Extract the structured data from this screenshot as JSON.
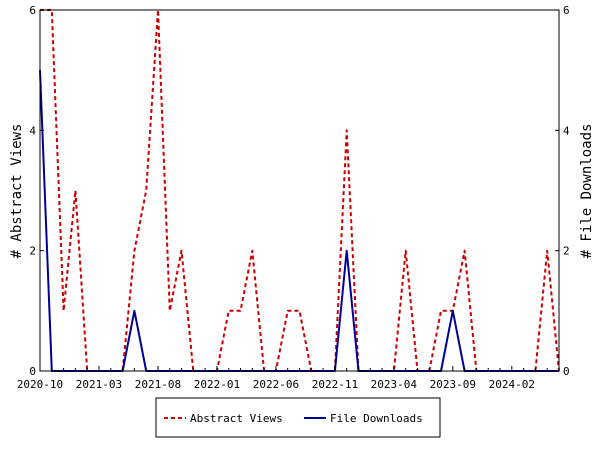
{
  "chart_data": {
    "type": "line",
    "title": "",
    "xlabel": "",
    "ylabel_left": "# Abstract Views",
    "ylabel_right": "# File Downloads",
    "x_ticks": [
      "2020-10",
      "2021-03",
      "2021-08",
      "2022-01",
      "2022-06",
      "2022-11",
      "2023-04",
      "2023-09",
      "2024-02"
    ],
    "ylim": [
      0,
      6
    ],
    "y_ticks_left": [
      "0",
      "2",
      "4",
      "6"
    ],
    "y_ticks_right": [
      "0",
      "2",
      "4",
      "6"
    ],
    "grid": false,
    "legend_position": "bottom-center",
    "x": [
      "2020-10",
      "2020-11",
      "2020-12",
      "2021-01",
      "2021-02",
      "2021-03",
      "2021-04",
      "2021-05",
      "2021-06",
      "2021-07",
      "2021-08",
      "2021-09",
      "2021-10",
      "2021-11",
      "2021-12",
      "2022-01",
      "2022-02",
      "2022-03",
      "2022-04",
      "2022-05",
      "2022-06",
      "2022-07",
      "2022-08",
      "2022-09",
      "2022-10",
      "2022-11",
      "2022-12",
      "2023-01",
      "2023-02",
      "2023-03",
      "2023-04",
      "2023-05",
      "2023-06",
      "2023-07",
      "2023-08",
      "2023-09",
      "2023-10",
      "2023-11",
      "2023-12",
      "2024-01",
      "2024-02",
      "2024-03",
      "2024-04",
      "2024-05",
      "2024-06"
    ],
    "series": [
      {
        "name": "Abstract Views",
        "color": "#cc0000",
        "style": "dashed",
        "values": [
          6,
          6,
          1,
          3,
          0,
          0,
          0,
          0,
          2,
          3,
          6,
          1,
          2,
          0,
          0,
          0,
          1,
          1,
          2,
          0,
          0,
          1,
          1,
          0,
          0,
          0,
          4,
          0,
          0,
          0,
          0,
          2,
          0,
          0,
          1,
          1,
          2,
          0,
          0,
          0,
          0,
          0,
          0,
          2,
          0
        ]
      },
      {
        "name": "File Downloads",
        "color": "#000099",
        "style": "solid",
        "values": [
          5,
          0,
          0,
          0,
          0,
          0,
          0,
          0,
          1,
          0,
          0,
          0,
          0,
          0,
          0,
          0,
          0,
          0,
          0,
          0,
          0,
          0,
          0,
          0,
          0,
          0,
          2,
          0,
          0,
          0,
          0,
          0,
          0,
          0,
          0,
          1,
          0,
          0,
          0,
          0,
          0,
          0,
          0,
          0,
          0
        ]
      }
    ]
  }
}
